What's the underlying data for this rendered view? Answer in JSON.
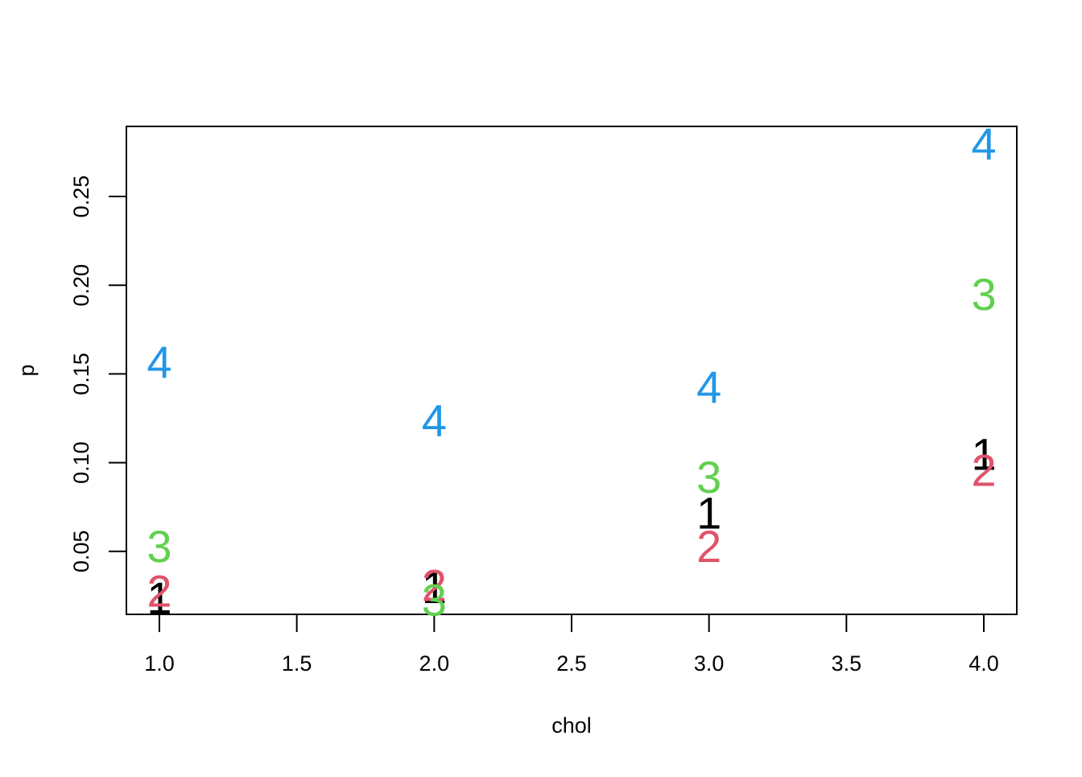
{
  "chart_data": {
    "type": "scatter",
    "title": "",
    "xlabel": "chol",
    "ylabel": "p",
    "xlim": [
      0.88,
      4.12
    ],
    "ylim": [
      0.0145,
      0.2895
    ],
    "x_ticks": [
      "1.0",
      "1.5",
      "2.0",
      "2.5",
      "3.0",
      "3.5",
      "4.0"
    ],
    "y_ticks": [
      "0.05",
      "0.10",
      "0.15",
      "0.20",
      "0.25"
    ],
    "grid": false,
    "legend": "none",
    "point_style": "text labels (group number)",
    "series": [
      {
        "name": "1",
        "color": "#000000",
        "x": [
          1,
          2,
          3,
          4
        ],
        "y": [
          0.024,
          0.03,
          0.072,
          0.105
        ]
      },
      {
        "name": "2",
        "color": "#DF536B",
        "x": [
          1,
          2,
          3,
          4
        ],
        "y": [
          0.028,
          0.031,
          0.053,
          0.096
        ]
      },
      {
        "name": "3",
        "color": "#61D04F",
        "x": [
          1,
          2,
          3,
          4
        ],
        "y": [
          0.053,
          0.023,
          0.092,
          0.195
        ]
      },
      {
        "name": "4",
        "color": "#2297E6",
        "x": [
          1,
          2,
          3,
          4
        ],
        "y": [
          0.157,
          0.124,
          0.143,
          0.28
        ]
      }
    ]
  }
}
